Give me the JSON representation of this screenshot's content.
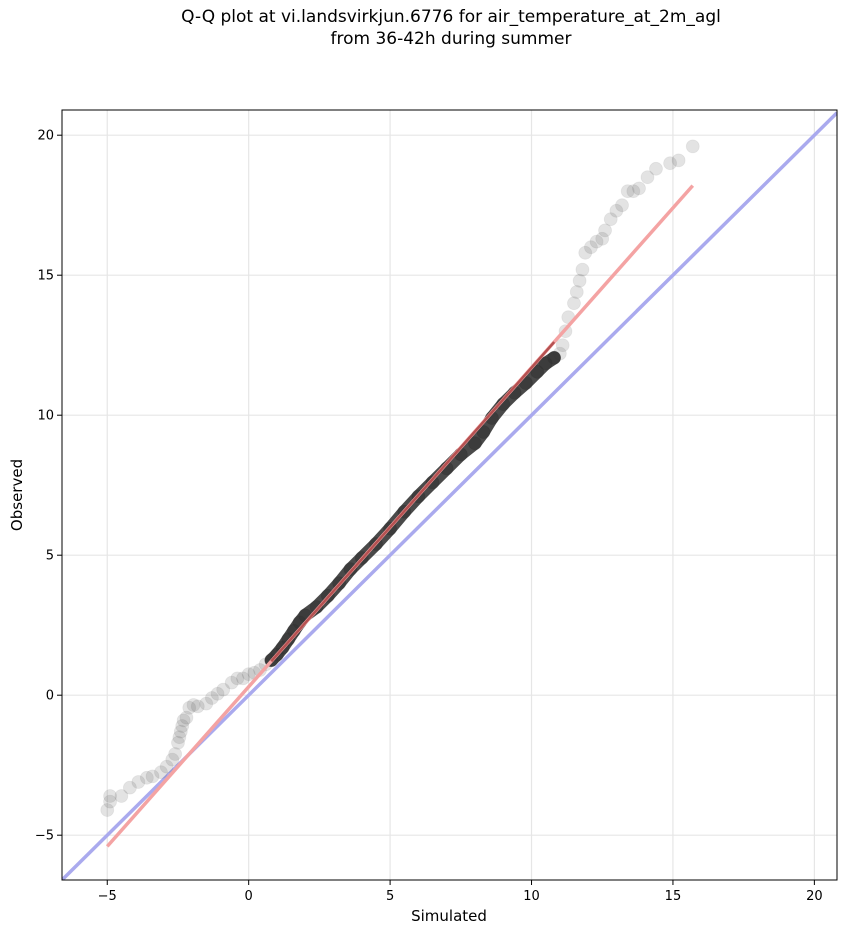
{
  "chart_data": {
    "type": "scatter",
    "title_lines": [
      "Q-Q plot at vi.landsvirkjun.6776 for air_temperature_at_2m_agl",
      "from 36-42h during summer"
    ],
    "xlabel": "Simulated",
    "ylabel": "Observed",
    "xlim": [
      -6.6,
      20.8
    ],
    "ylim": [
      -6.6,
      20.9
    ],
    "xticks": [
      -5,
      0,
      5,
      10,
      15,
      20
    ],
    "yticks": [
      -5,
      0,
      5,
      10,
      15,
      20
    ],
    "xtick_labels": [
      "−5",
      "0",
      "5",
      "10",
      "15",
      "20"
    ],
    "ytick_labels": [
      "−5",
      "0",
      "5",
      "10",
      "15",
      "20"
    ],
    "grid": true,
    "series": [
      {
        "kind": "quantile-points",
        "color": "#555555",
        "x": [
          -5.0,
          -4.9,
          -4.9,
          -4.5,
          -4.2,
          -3.9,
          -3.6,
          -3.4,
          -3.1,
          -2.9,
          -2.7,
          -2.6,
          -2.5,
          -2.45,
          -2.4,
          -2.35,
          -2.3,
          -2.2,
          -2.1,
          -1.95,
          -1.8,
          -1.5,
          -1.3,
          -1.1,
          -0.9,
          -0.6,
          -0.4,
          -0.2,
          0.0,
          0.2,
          0.4,
          0.6,
          0.8,
          1.0,
          1.2,
          1.4,
          1.6,
          1.8,
          2.0,
          2.4,
          2.8,
          3.2,
          3.6,
          4.0,
          4.5,
          5.0,
          5.5,
          6.0,
          6.5,
          7.0,
          7.5,
          8.0,
          8.3,
          8.6,
          9.0,
          9.4,
          9.8,
          10.2,
          10.5,
          10.8,
          11.0,
          11.1,
          11.2,
          11.3,
          11.5,
          11.6,
          11.7,
          11.8,
          11.9,
          12.1,
          12.3,
          12.5,
          12.6,
          12.8,
          13.0,
          13.2,
          13.4,
          13.6,
          13.8,
          14.1,
          14.4,
          14.9,
          15.2,
          15.7
        ],
        "y": [
          -4.1,
          -3.8,
          -3.6,
          -3.6,
          -3.3,
          -3.1,
          -2.95,
          -2.9,
          -2.75,
          -2.55,
          -2.3,
          -2.1,
          -1.7,
          -1.5,
          -1.3,
          -1.1,
          -0.9,
          -0.8,
          -0.45,
          -0.35,
          -0.4,
          -0.3,
          -0.1,
          0.05,
          0.2,
          0.45,
          0.6,
          0.6,
          0.75,
          0.8,
          0.9,
          1.1,
          1.25,
          1.45,
          1.7,
          2.0,
          2.3,
          2.6,
          2.85,
          3.15,
          3.55,
          4.0,
          4.5,
          4.9,
          5.4,
          5.95,
          6.55,
          7.1,
          7.6,
          8.1,
          8.6,
          9.0,
          9.4,
          9.9,
          10.4,
          10.8,
          11.15,
          11.55,
          11.85,
          12.05,
          12.2,
          12.5,
          13.0,
          13.5,
          14.0,
          14.4,
          14.8,
          15.2,
          15.8,
          16.0,
          16.2,
          16.3,
          16.6,
          17.0,
          17.3,
          17.5,
          18.0,
          18.0,
          18.1,
          18.5,
          18.8,
          19.0,
          19.1,
          19.6
        ]
      },
      {
        "kind": "fit-line",
        "color": "#f4a3a3",
        "x": [
          -5.0,
          15.7
        ],
        "y": [
          -5.4,
          18.2
        ]
      },
      {
        "kind": "identity-line",
        "color": "#aaaaee",
        "x": [
          -6.6,
          20.8
        ],
        "y": [
          -6.6,
          20.8
        ]
      }
    ]
  }
}
